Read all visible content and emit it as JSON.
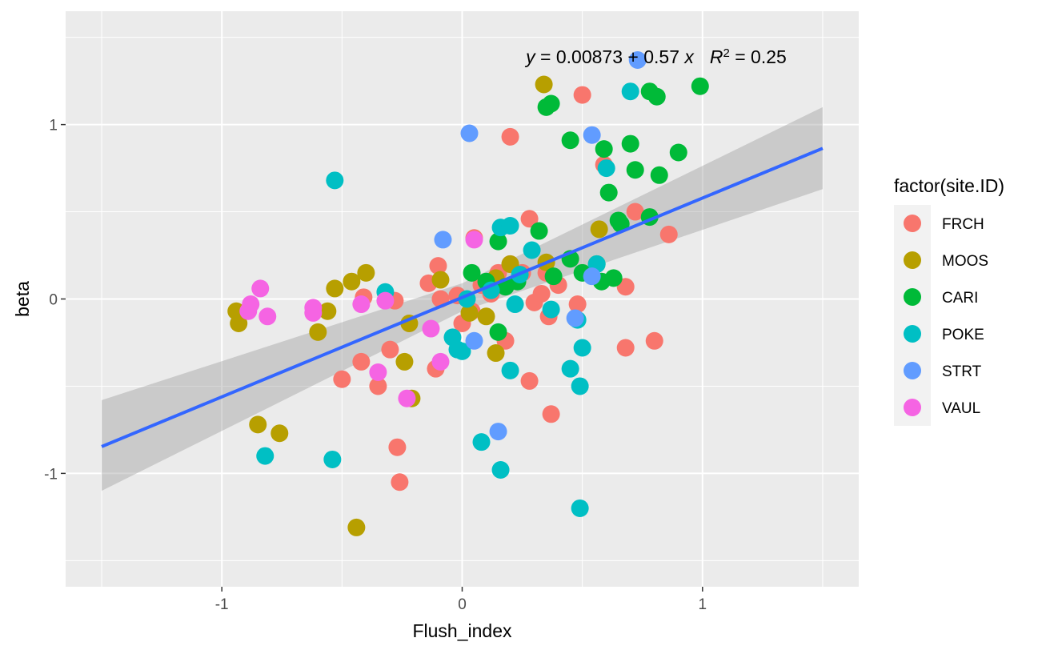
{
  "chart_data": {
    "type": "scatter",
    "title": "",
    "xlabel": "Flush_index",
    "ylabel": "beta",
    "xlim": [
      -1.65,
      1.65
    ],
    "ylim": [
      -1.65,
      1.65
    ],
    "x_ticks": [
      -1,
      0,
      1
    ],
    "x_tick_labels": [
      "-1",
      "0",
      "1"
    ],
    "y_ticks": [
      -1,
      0,
      1
    ],
    "y_tick_labels": [
      "-1",
      "0",
      "1"
    ],
    "grid": true,
    "legend": {
      "title": "factor(site.ID)",
      "position": "right"
    },
    "annotation": {
      "text_y": "y",
      "text_eq": " = 0.00873 + 0.57 ",
      "text_x": "x",
      "text_r": "R",
      "text_sup": "2",
      "text_rest": " = 0.25"
    },
    "regression": {
      "intercept": 0.00873,
      "slope": 0.57,
      "x_range": [
        -1.5,
        1.5
      ],
      "ci_band": [
        {
          "x": -1.5,
          "lo": -1.1,
          "hi": -0.58
        },
        {
          "x": 0.0,
          "lo": -0.07,
          "hi": 0.09
        },
        {
          "x": 1.5,
          "lo": 0.63,
          "hi": 1.1
        }
      ],
      "line_color": "#3366ff",
      "band_color": "#999999"
    },
    "series": [
      {
        "name": "FRCH",
        "color": "#f8766d",
        "points": [
          [
            0.5,
            1.17
          ],
          [
            0.2,
            0.93
          ],
          [
            0.59,
            0.77
          ],
          [
            0.72,
            0.5
          ],
          [
            0.86,
            0.37
          ],
          [
            0.28,
            0.46
          ],
          [
            -0.1,
            0.19
          ],
          [
            -0.14,
            0.09
          ],
          [
            -0.09,
            0.0
          ],
          [
            -0.02,
            0.02
          ],
          [
            0.05,
            0.35
          ],
          [
            0.08,
            0.08
          ],
          [
            0.12,
            0.03
          ],
          [
            0.2,
            0.2
          ],
          [
            0.25,
            0.15
          ],
          [
            0.3,
            -0.02
          ],
          [
            0.33,
            0.03
          ],
          [
            0.36,
            -0.1
          ],
          [
            0.4,
            0.08
          ],
          [
            0.48,
            -0.03
          ],
          [
            0.68,
            0.07
          ],
          [
            0.68,
            -0.28
          ],
          [
            0.8,
            -0.24
          ],
          [
            -0.5,
            -0.46
          ],
          [
            -0.41,
            0.01
          ],
          [
            -0.42,
            -0.36
          ],
          [
            -0.35,
            -0.5
          ],
          [
            -0.3,
            -0.29
          ],
          [
            -0.28,
            -0.01
          ],
          [
            -0.27,
            -0.85
          ],
          [
            -0.26,
            -1.05
          ],
          [
            -0.11,
            -0.4
          ],
          [
            0.0,
            -0.14
          ],
          [
            0.04,
            -0.07
          ],
          [
            0.18,
            -0.24
          ],
          [
            0.28,
            -0.47
          ],
          [
            0.37,
            -0.66
          ],
          [
            0.15,
            0.15
          ],
          [
            0.35,
            0.15
          ]
        ]
      },
      {
        "name": "MOOS",
        "color": "#b79f00",
        "points": [
          [
            0.34,
            1.23
          ],
          [
            0.57,
            0.4
          ],
          [
            0.35,
            0.21
          ],
          [
            0.2,
            0.2
          ],
          [
            0.14,
            0.12
          ],
          [
            0.03,
            -0.08
          ],
          [
            0.14,
            -0.31
          ],
          [
            -0.09,
            0.11
          ],
          [
            -0.22,
            -0.14
          ],
          [
            -0.24,
            -0.36
          ],
          [
            -0.21,
            -0.57
          ],
          [
            -0.4,
            0.15
          ],
          [
            -0.46,
            0.1
          ],
          [
            -0.53,
            0.06
          ],
          [
            -0.56,
            -0.07
          ],
          [
            -0.6,
            -0.19
          ],
          [
            -0.94,
            -0.07
          ],
          [
            -0.93,
            -0.14
          ],
          [
            -0.85,
            -0.72
          ],
          [
            -0.76,
            -0.77
          ],
          [
            -0.44,
            -1.31
          ],
          [
            0.1,
            -0.1
          ]
        ]
      },
      {
        "name": "CARI",
        "color": "#00ba38",
        "points": [
          [
            0.35,
            1.1
          ],
          [
            0.37,
            1.12
          ],
          [
            0.78,
            1.19
          ],
          [
            0.81,
            1.16
          ],
          [
            0.99,
            1.22
          ],
          [
            0.45,
            0.91
          ],
          [
            0.59,
            0.86
          ],
          [
            0.7,
            0.89
          ],
          [
            0.9,
            0.84
          ],
          [
            0.72,
            0.74
          ],
          [
            0.82,
            0.71
          ],
          [
            0.61,
            0.61
          ],
          [
            0.65,
            0.45
          ],
          [
            0.66,
            0.43
          ],
          [
            0.78,
            0.47
          ],
          [
            0.32,
            0.39
          ],
          [
            0.15,
            0.33
          ],
          [
            0.45,
            0.23
          ],
          [
            0.56,
            0.2
          ],
          [
            0.38,
            0.13
          ],
          [
            0.5,
            0.15
          ],
          [
            0.58,
            0.1
          ],
          [
            0.63,
            0.12
          ],
          [
            0.04,
            0.15
          ],
          [
            0.1,
            0.1
          ],
          [
            0.18,
            0.07
          ],
          [
            0.23,
            0.1
          ],
          [
            0.15,
            -0.19
          ]
        ]
      },
      {
        "name": "POKE",
        "color": "#00bfc4",
        "points": [
          [
            0.7,
            1.19
          ],
          [
            0.6,
            0.75
          ],
          [
            -0.53,
            0.68
          ],
          [
            0.16,
            0.41
          ],
          [
            0.2,
            0.42
          ],
          [
            0.29,
            0.28
          ],
          [
            0.24,
            0.14
          ],
          [
            0.12,
            0.05
          ],
          [
            0.22,
            -0.03
          ],
          [
            0.37,
            -0.06
          ],
          [
            0.48,
            -0.12
          ],
          [
            -0.32,
            0.04
          ],
          [
            -0.04,
            -0.22
          ],
          [
            -0.02,
            -0.29
          ],
          [
            0.0,
            -0.3
          ],
          [
            0.5,
            -0.28
          ],
          [
            0.45,
            -0.4
          ],
          [
            0.49,
            -0.5
          ],
          [
            0.2,
            -0.41
          ],
          [
            0.08,
            -0.82
          ],
          [
            0.16,
            -0.98
          ],
          [
            0.49,
            -1.2
          ],
          [
            -0.82,
            -0.9
          ],
          [
            -0.54,
            -0.92
          ],
          [
            0.56,
            0.2
          ],
          [
            0.02,
            0.0
          ]
        ]
      },
      {
        "name": "STRT",
        "color": "#619cff",
        "points": [
          [
            0.73,
            1.37
          ],
          [
            0.03,
            0.95
          ],
          [
            0.54,
            0.94
          ],
          [
            -0.08,
            0.34
          ],
          [
            0.15,
            -0.76
          ],
          [
            0.47,
            -0.11
          ],
          [
            0.05,
            -0.24
          ],
          [
            0.54,
            0.13
          ]
        ]
      },
      {
        "name": "VAUL",
        "color": "#f564e3",
        "points": [
          [
            0.05,
            0.34
          ],
          [
            -0.84,
            0.06
          ],
          [
            -0.88,
            -0.03
          ],
          [
            -0.89,
            -0.07
          ],
          [
            -0.81,
            -0.1
          ],
          [
            -0.62,
            -0.05
          ],
          [
            -0.62,
            -0.08
          ],
          [
            -0.42,
            -0.03
          ],
          [
            -0.32,
            -0.01
          ],
          [
            -0.35,
            -0.42
          ],
          [
            -0.13,
            -0.17
          ],
          [
            -0.09,
            -0.36
          ],
          [
            -0.23,
            -0.57
          ]
        ]
      }
    ]
  }
}
